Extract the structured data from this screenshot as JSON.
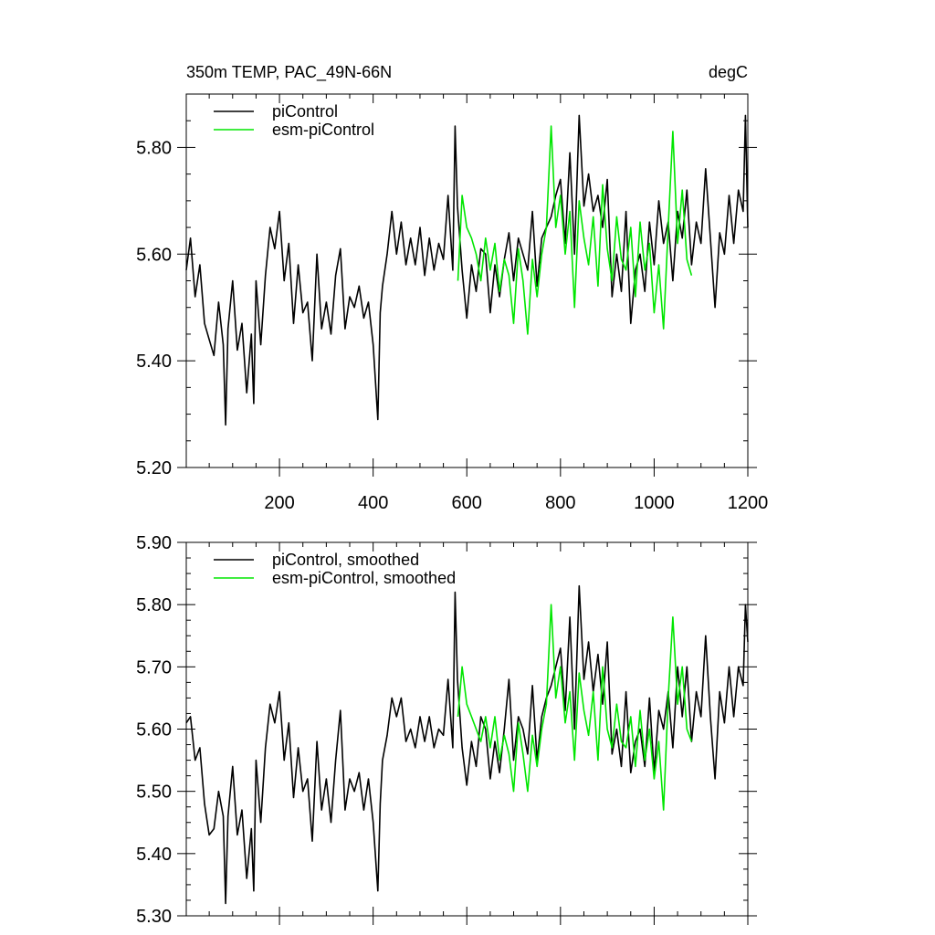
{
  "chart_data": [
    {
      "type": "line",
      "title": "350m TEMP, PAC_49N-66N",
      "units": "degC",
      "xlim": [
        1,
        1200
      ],
      "ylim": [
        5.2,
        5.9
      ],
      "xticks": [
        200,
        400,
        600,
        800,
        1000,
        1200
      ],
      "xtick_labels": [
        "200",
        "400",
        "600",
        "800",
        "1000",
        "1200"
      ],
      "yticks": [
        5.2,
        5.4,
        5.6,
        5.8
      ],
      "ytick_labels": [
        "5.20",
        "5.40",
        "5.60",
        "5.80"
      ],
      "legend_position": "top-left",
      "series": [
        {
          "name": "piControl",
          "color": "#000000",
          "x": [
            1,
            10,
            20,
            30,
            40,
            50,
            60,
            70,
            80,
            85,
            90,
            100,
            110,
            120,
            130,
            140,
            145,
            150,
            160,
            170,
            180,
            190,
            200,
            210,
            220,
            230,
            240,
            250,
            260,
            270,
            280,
            290,
            300,
            310,
            320,
            330,
            340,
            350,
            360,
            370,
            380,
            390,
            400,
            410,
            415,
            420,
            430,
            440,
            450,
            460,
            470,
            480,
            490,
            500,
            510,
            520,
            530,
            540,
            550,
            560,
            570,
            575,
            580,
            590,
            600,
            610,
            620,
            630,
            640,
            650,
            660,
            670,
            680,
            690,
            700,
            710,
            720,
            730,
            740,
            750,
            760,
            770,
            780,
            790,
            800,
            810,
            820,
            830,
            840,
            850,
            860,
            870,
            880,
            890,
            900,
            910,
            920,
            930,
            940,
            950,
            960,
            970,
            980,
            990,
            1000,
            1010,
            1020,
            1030,
            1040,
            1050,
            1060,
            1070,
            1080,
            1090,
            1100,
            1110,
            1120,
            1130,
            1140,
            1150,
            1160,
            1170,
            1180,
            1190,
            1195,
            1200
          ],
          "y": [
            5.57,
            5.63,
            5.52,
            5.58,
            5.47,
            5.44,
            5.41,
            5.51,
            5.43,
            5.28,
            5.46,
            5.55,
            5.42,
            5.47,
            5.34,
            5.45,
            5.32,
            5.55,
            5.43,
            5.56,
            5.65,
            5.61,
            5.68,
            5.55,
            5.62,
            5.47,
            5.58,
            5.49,
            5.51,
            5.4,
            5.6,
            5.46,
            5.51,
            5.45,
            5.56,
            5.61,
            5.46,
            5.52,
            5.5,
            5.54,
            5.48,
            5.51,
            5.43,
            5.29,
            5.49,
            5.54,
            5.6,
            5.68,
            5.6,
            5.66,
            5.58,
            5.63,
            5.58,
            5.65,
            5.56,
            5.63,
            5.57,
            5.62,
            5.59,
            5.71,
            5.57,
            5.84,
            5.69,
            5.57,
            5.48,
            5.58,
            5.53,
            5.61,
            5.6,
            5.49,
            5.58,
            5.52,
            5.59,
            5.64,
            5.55,
            5.63,
            5.6,
            5.57,
            5.68,
            5.54,
            5.63,
            5.65,
            5.67,
            5.71,
            5.74,
            5.62,
            5.79,
            5.6,
            5.86,
            5.69,
            5.75,
            5.68,
            5.71,
            5.65,
            5.74,
            5.52,
            5.6,
            5.53,
            5.68,
            5.47,
            5.57,
            5.6,
            5.53,
            5.66,
            5.58,
            5.7,
            5.62,
            5.66,
            5.55,
            5.68,
            5.63,
            5.72,
            5.58,
            5.66,
            5.62,
            5.76,
            5.63,
            5.5,
            5.64,
            5.6,
            5.71,
            5.62,
            5.72,
            5.68,
            5.86,
            5.65
          ]
        },
        {
          "name": "esm-piControl",
          "color": "#00e600",
          "x": [
            581,
            590,
            600,
            610,
            620,
            630,
            640,
            650,
            660,
            670,
            680,
            690,
            700,
            710,
            720,
            730,
            740,
            750,
            760,
            770,
            780,
            790,
            800,
            810,
            820,
            830,
            840,
            850,
            860,
            870,
            880,
            890,
            900,
            910,
            920,
            930,
            940,
            950,
            960,
            970,
            980,
            990,
            1000,
            1010,
            1020,
            1030,
            1040,
            1050,
            1060,
            1070,
            1080
          ],
          "y": [
            5.55,
            5.71,
            5.65,
            5.63,
            5.6,
            5.55,
            5.63,
            5.57,
            5.62,
            5.53,
            5.59,
            5.56,
            5.47,
            5.61,
            5.55,
            5.45,
            5.59,
            5.52,
            5.6,
            5.65,
            5.84,
            5.65,
            5.71,
            5.6,
            5.68,
            5.5,
            5.7,
            5.63,
            5.58,
            5.67,
            5.54,
            5.73,
            5.61,
            5.55,
            5.67,
            5.59,
            5.57,
            5.65,
            5.52,
            5.66,
            5.57,
            5.62,
            5.49,
            5.58,
            5.46,
            5.65,
            5.83,
            5.62,
            5.72,
            5.59,
            5.56
          ]
        }
      ]
    },
    {
      "type": "line",
      "xlim": [
        1,
        1200
      ],
      "ylim": [
        5.3,
        5.9
      ],
      "xticks": [
        200,
        400,
        600,
        800,
        1000,
        1200
      ],
      "yticks": [
        5.3,
        5.4,
        5.5,
        5.6,
        5.7,
        5.8,
        5.9
      ],
      "ytick_labels": [
        "5.30",
        "5.40",
        "5.50",
        "5.60",
        "5.70",
        "5.80",
        "5.90"
      ],
      "legend_position": "top-left",
      "series": [
        {
          "name": "piControl, smoothed",
          "color": "#000000",
          "x": [
            1,
            10,
            20,
            30,
            40,
            50,
            60,
            70,
            80,
            85,
            90,
            100,
            110,
            120,
            130,
            140,
            145,
            150,
            160,
            170,
            180,
            190,
            200,
            210,
            220,
            230,
            240,
            250,
            260,
            270,
            280,
            290,
            300,
            310,
            320,
            330,
            340,
            350,
            360,
            370,
            380,
            390,
            400,
            410,
            415,
            420,
            430,
            440,
            450,
            460,
            470,
            480,
            490,
            500,
            510,
            520,
            530,
            540,
            550,
            560,
            570,
            575,
            580,
            590,
            600,
            610,
            620,
            630,
            640,
            650,
            660,
            670,
            680,
            690,
            700,
            710,
            720,
            730,
            740,
            750,
            760,
            770,
            780,
            790,
            800,
            810,
            820,
            830,
            840,
            850,
            860,
            870,
            880,
            890,
            900,
            910,
            920,
            930,
            940,
            950,
            960,
            970,
            980,
            990,
            1000,
            1010,
            1020,
            1030,
            1040,
            1050,
            1060,
            1070,
            1080,
            1090,
            1100,
            1110,
            1120,
            1130,
            1140,
            1150,
            1160,
            1170,
            1180,
            1190,
            1195,
            1200
          ],
          "y": [
            5.61,
            5.62,
            5.55,
            5.57,
            5.48,
            5.43,
            5.44,
            5.5,
            5.46,
            5.32,
            5.46,
            5.54,
            5.43,
            5.47,
            5.36,
            5.44,
            5.34,
            5.55,
            5.45,
            5.57,
            5.64,
            5.61,
            5.66,
            5.55,
            5.61,
            5.49,
            5.57,
            5.5,
            5.52,
            5.42,
            5.58,
            5.47,
            5.52,
            5.45,
            5.55,
            5.63,
            5.47,
            5.52,
            5.5,
            5.53,
            5.47,
            5.52,
            5.45,
            5.34,
            5.48,
            5.55,
            5.59,
            5.65,
            5.62,
            5.65,
            5.58,
            5.6,
            5.57,
            5.62,
            5.58,
            5.62,
            5.57,
            5.6,
            5.59,
            5.68,
            5.57,
            5.82,
            5.68,
            5.57,
            5.51,
            5.58,
            5.54,
            5.62,
            5.6,
            5.52,
            5.58,
            5.53,
            5.6,
            5.68,
            5.55,
            5.62,
            5.6,
            5.56,
            5.67,
            5.55,
            5.62,
            5.65,
            5.67,
            5.7,
            5.73,
            5.63,
            5.78,
            5.6,
            5.83,
            5.68,
            5.74,
            5.66,
            5.72,
            5.64,
            5.74,
            5.56,
            5.6,
            5.54,
            5.66,
            5.53,
            5.58,
            5.6,
            5.54,
            5.65,
            5.53,
            5.63,
            5.6,
            5.66,
            5.57,
            5.7,
            5.62,
            5.7,
            5.58,
            5.66,
            5.62,
            5.75,
            5.62,
            5.52,
            5.66,
            5.61,
            5.7,
            5.62,
            5.7,
            5.67,
            5.8,
            5.74
          ]
        },
        {
          "name": "esm-piControl, smoothed",
          "color": "#00e600",
          "x": [
            581,
            590,
            600,
            610,
            620,
            630,
            640,
            650,
            660,
            670,
            680,
            690,
            700,
            710,
            720,
            730,
            740,
            750,
            760,
            770,
            780,
            790,
            800,
            810,
            820,
            830,
            840,
            850,
            860,
            870,
            880,
            890,
            900,
            910,
            920,
            930,
            940,
            950,
            960,
            970,
            980,
            990,
            1000,
            1010,
            1020,
            1030,
            1040,
            1050,
            1060,
            1070,
            1080
          ],
          "y": [
            5.62,
            5.7,
            5.64,
            5.62,
            5.6,
            5.58,
            5.62,
            5.57,
            5.62,
            5.55,
            5.59,
            5.56,
            5.5,
            5.61,
            5.56,
            5.5,
            5.59,
            5.54,
            5.6,
            5.64,
            5.8,
            5.65,
            5.7,
            5.61,
            5.66,
            5.55,
            5.69,
            5.63,
            5.59,
            5.66,
            5.55,
            5.7,
            5.6,
            5.57,
            5.64,
            5.58,
            5.57,
            5.62,
            5.54,
            5.63,
            5.55,
            5.6,
            5.52,
            5.58,
            5.47,
            5.65,
            5.78,
            5.64,
            5.7,
            5.6,
            5.58
          ]
        }
      ]
    }
  ]
}
